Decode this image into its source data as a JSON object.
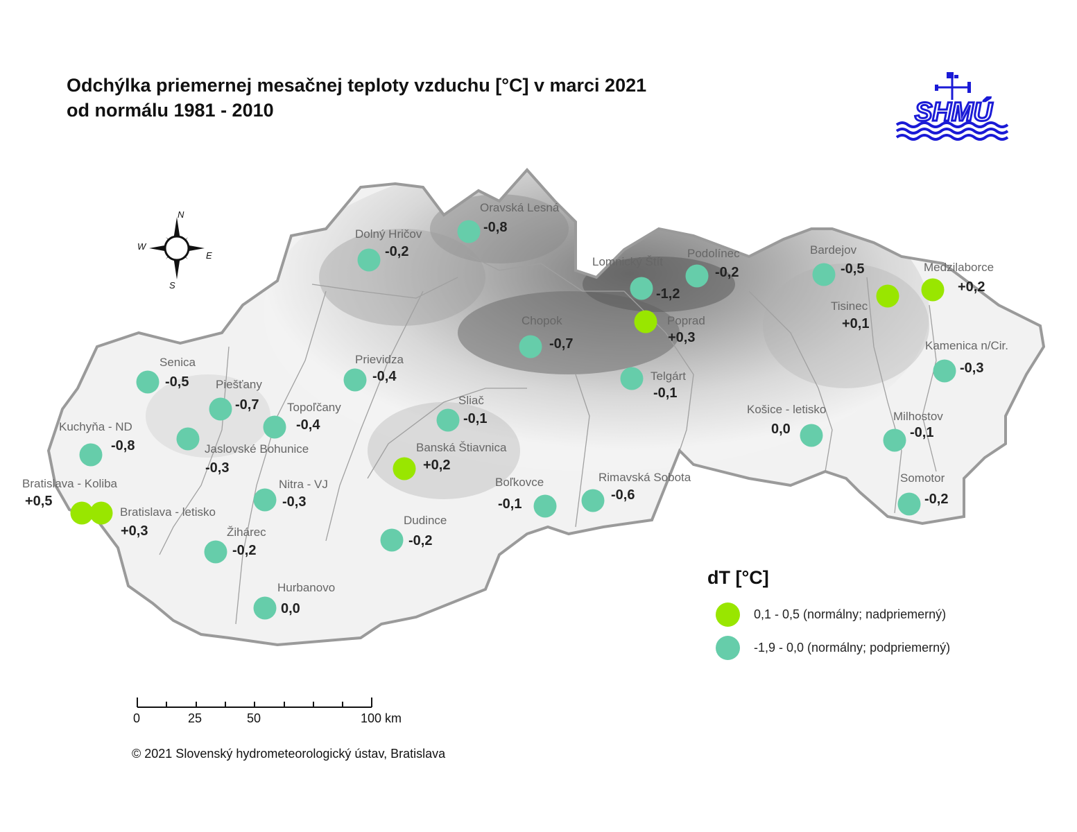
{
  "title_line1": "Odchýlka priemernej mesačnej teploty vzduchu [°C] v marci 2021",
  "title_line2": "od normálu 1981 - 2010",
  "logo_text": "SHMÚ",
  "compass": {
    "n": "N",
    "s": "S",
    "e": "E",
    "w": "W"
  },
  "colors": {
    "above": "#99e600",
    "below": "#66cdaa",
    "terrain_light": "#f4f4f4",
    "terrain_dark": "#6e6e6e",
    "border": "#9a9a9a",
    "logo_blue": "#1a1ad6"
  },
  "legend": {
    "title": "dT [°C]",
    "items": [
      {
        "label": "0,1 - 0,5 (normálny; nadpriemerný)",
        "color": "#99e600"
      },
      {
        "label": "-1,9 - 0,0 (normálny; podpriemerný)",
        "color": "#66cdaa"
      }
    ]
  },
  "scale": {
    "labels": [
      "0",
      "25",
      "50",
      "100 km"
    ]
  },
  "copyright": "© 2021 Slovenský hydrometeorologický ústav, Bratislava",
  "stations": [
    {
      "name": "Oravská Lesná",
      "value": "-0,8",
      "cls": "below"
    },
    {
      "name": "Dolný Hričov",
      "value": "-0,2",
      "cls": "below"
    },
    {
      "name": "Lomnický Štít",
      "value": "-1,2",
      "cls": "below"
    },
    {
      "name": "Podolínec",
      "value": "-0,2",
      "cls": "below"
    },
    {
      "name": "Bardejov",
      "value": "-0,5",
      "cls": "below"
    },
    {
      "name": "Medzilaborce",
      "value": "+0,2",
      "cls": "above"
    },
    {
      "name": "Tisinec",
      "value": "+0,1",
      "cls": "above"
    },
    {
      "name": "Poprad",
      "value": "+0,3",
      "cls": "above"
    },
    {
      "name": "Chopok",
      "value": "-0,7",
      "cls": "below"
    },
    {
      "name": "Kamenica n/Cir.",
      "value": "-0,3",
      "cls": "below"
    },
    {
      "name": "Senica",
      "value": "-0,5",
      "cls": "below"
    },
    {
      "name": "Prievidza",
      "value": "-0,4",
      "cls": "below"
    },
    {
      "name": "Telgárt",
      "value": "-0,1",
      "cls": "below"
    },
    {
      "name": "Piešťany",
      "value": "-0,7",
      "cls": "below"
    },
    {
      "name": "Topoľčany",
      "value": "-0,4",
      "cls": "below"
    },
    {
      "name": "Sliač",
      "value": "-0,1",
      "cls": "below"
    },
    {
      "name": "Košice - letisko",
      "value": "0,0",
      "cls": "below"
    },
    {
      "name": "Milhostov",
      "value": "-0,1",
      "cls": "below"
    },
    {
      "name": "Kuchyňa - ND",
      "value": "-0,8",
      "cls": "below"
    },
    {
      "name": "Jaslovské Bohunice",
      "value": "-0,3",
      "cls": "below"
    },
    {
      "name": "Banská Štiavnica",
      "value": "+0,2",
      "cls": "above"
    },
    {
      "name": "Bratislava - Koliba",
      "value": "+0,5",
      "cls": "above"
    },
    {
      "name": "Bratislava - letisko",
      "value": "+0,3",
      "cls": "above"
    },
    {
      "name": "Nitra - VJ",
      "value": "-0,3",
      "cls": "below"
    },
    {
      "name": "Boľkovce",
      "value": "-0,1",
      "cls": "below"
    },
    {
      "name": "Rimavská Sobota",
      "value": "-0,6",
      "cls": "below"
    },
    {
      "name": "Somotor",
      "value": "-0,2",
      "cls": "below"
    },
    {
      "name": "Žihárec",
      "value": "-0,2",
      "cls": "below"
    },
    {
      "name": "Dudince",
      "value": "-0,2",
      "cls": "below"
    },
    {
      "name": "Hurbanovo",
      "value": "0,0",
      "cls": "below"
    }
  ]
}
